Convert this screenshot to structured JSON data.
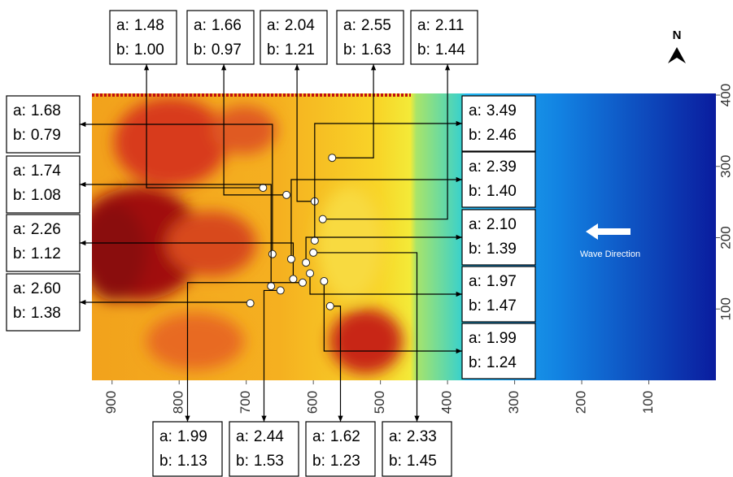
{
  "chart_data": {
    "type": "scatter",
    "xlim": [
      930,
      0
    ],
    "ylim": [
      0,
      400
    ],
    "xticks": [
      900,
      800,
      700,
      600,
      500,
      400,
      300,
      200,
      100
    ],
    "yticks": [
      100,
      200,
      300,
      400
    ],
    "north_label": "N",
    "wave_label": "Wave Direction",
    "a_prefix": "a:",
    "b_prefix": "b:",
    "x": [
      675,
      640,
      598,
      572,
      586,
      661,
      663,
      630,
      694,
      598,
      633,
      611,
      605,
      584,
      616,
      649,
      575,
      600
    ],
    "y": [
      270,
      260,
      251,
      312,
      226,
      177,
      132,
      142,
      108,
      196,
      170,
      165,
      150,
      139,
      137,
      126,
      104,
      179
    ],
    "a": [
      "1.48",
      "1.66",
      "2.04",
      "2.55",
      "2.11",
      "1.68",
      "1.74",
      "2.26",
      "2.60",
      "3.49",
      "2.39",
      "2.10",
      "1.97",
      "1.99",
      "1.99",
      "2.44",
      "1.62",
      "2.33"
    ],
    "b": [
      "1.00",
      "0.97",
      "1.21",
      "1.63",
      "1.44",
      "0.79",
      "1.08",
      "1.12",
      "1.38",
      "2.46",
      "1.40",
      "1.39",
      "1.47",
      "1.24",
      "1.13",
      "1.53",
      "1.23",
      "1.45"
    ]
  }
}
